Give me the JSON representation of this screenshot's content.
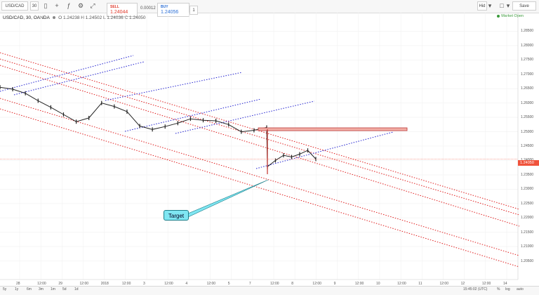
{
  "toolbar": {
    "symbol": "USD/CAD",
    "interval": "30",
    "save_label": "Save",
    "hide_label": "Hid",
    "colors": {
      "bg": "#f7f7f7",
      "border": "#d9d9d9"
    }
  },
  "legend": {
    "title": "USD/CAD, 30, OANDA",
    "ohlc": "O 1.24238 H 1.24502 L 1.24036 C 1.24050"
  },
  "trade": {
    "sell_label": "SELL",
    "sell_price": "1.24044",
    "spread": "0.00012",
    "buy_label": "BUY",
    "buy_price": "1.24056",
    "qty": "1",
    "colors": {
      "sell": "#e0392b",
      "buy": "#2b6fd6"
    }
  },
  "market_status": "Market Open",
  "price_tag": "1.24050",
  "annotation": "Target",
  "chart_data": {
    "type": "line",
    "title": "USD/CAD, 30, OANDA",
    "xlabel": "",
    "ylabel": "",
    "ylim": [
      1.2,
      1.29
    ],
    "y_ticks": [
      "1.28500",
      "1.28000",
      "1.27500",
      "1.27000",
      "1.26500",
      "1.26000",
      "1.25500",
      "1.25000",
      "1.24500",
      "1.24000",
      "1.23500",
      "1.23000",
      "1.22500",
      "1.22000",
      "1.21500",
      "1.21000",
      "1.20500"
    ],
    "x_ticks": [
      "28",
      "12:00",
      "29",
      "12:00",
      "2018",
      "12:00",
      "3",
      "12:00",
      "4",
      "12:00",
      "5",
      "7",
      "12:00",
      "8",
      "12:00",
      "9",
      "12:00",
      "10",
      "12:00",
      "11",
      "12:00",
      "12",
      "12:00",
      "14"
    ],
    "series": [
      {
        "values": [
          1.2655,
          1.2648,
          1.2634,
          1.2608,
          1.2585,
          1.256,
          1.2535,
          1.2548,
          1.26,
          1.2588,
          1.257,
          1.252,
          1.2508,
          1.2518,
          1.253,
          1.2545,
          1.254,
          1.2538,
          1.2525,
          1.25,
          1.2505,
          1.2515,
          1.2378,
          1.24,
          1.2418,
          1.2412,
          1.2422,
          1.2435,
          1.2405
        ]
      }
    ],
    "current_price": 1.2405,
    "grid": true
  },
  "bottombar": {
    "ranges": [
      "5y",
      "1y",
      "6m",
      "3m",
      "1m",
      "5d",
      "1d"
    ],
    "time": "15:45:02 (UTC)",
    "pct": "%",
    "log": "log",
    "auto": "auto"
  }
}
